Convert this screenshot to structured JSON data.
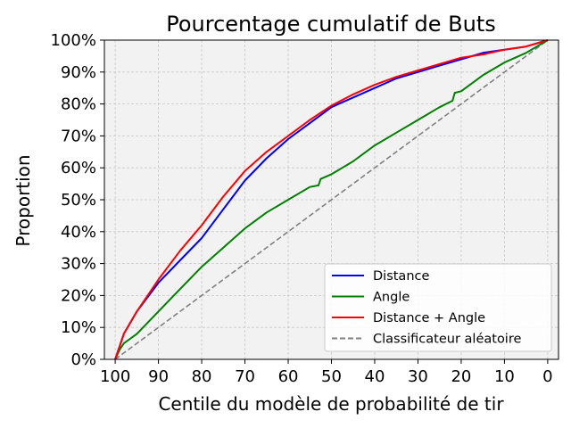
{
  "chart_data": {
    "type": "line",
    "title": "Pourcentage cumulatif de Buts",
    "xlabel": "Centile du modèle de probabilité de tir",
    "ylabel": "Proportion",
    "xlim": [
      102.5,
      -2.5
    ],
    "ylim": [
      0,
      100
    ],
    "x_inverted": true,
    "x_ticks": [
      100,
      90,
      80,
      70,
      60,
      50,
      40,
      30,
      20,
      10,
      0
    ],
    "y_ticks": [
      0,
      10,
      20,
      30,
      40,
      50,
      60,
      70,
      80,
      90,
      100
    ],
    "y_tick_format": "percent",
    "grid": true,
    "legend_position": "bottom-right",
    "background": "#f2f2f2",
    "series": [
      {
        "name": "Distance",
        "color": "#0000ff",
        "style": "solid",
        "x": [
          100,
          99,
          98,
          95,
          90,
          85,
          80,
          75,
          70,
          65,
          60,
          55,
          50,
          45,
          40,
          35,
          30,
          25,
          20,
          15,
          10,
          5,
          0
        ],
        "y": [
          0,
          4,
          8,
          15,
          24,
          31,
          38,
          47,
          56,
          63,
          69,
          74,
          79,
          82,
          85,
          88,
          90,
          92,
          94,
          96,
          97,
          98,
          100
        ]
      },
      {
        "name": "Angle",
        "color": "#008000",
        "style": "solid",
        "x": [
          100,
          99,
          98,
          95,
          90,
          85,
          80,
          75,
          70,
          65,
          60,
          55,
          53,
          52.5,
          50,
          45,
          40,
          35,
          30,
          25,
          22,
          21.5,
          20,
          15,
          10,
          5,
          0
        ],
        "y": [
          0,
          3,
          5,
          8,
          15,
          22,
          29,
          35,
          41,
          46,
          50,
          54,
          54.5,
          56.5,
          58,
          62,
          67,
          71,
          75,
          79,
          81,
          83.5,
          84,
          89,
          93,
          96,
          100
        ]
      },
      {
        "name": "Distance + Angle",
        "color": "#ff0000",
        "style": "solid",
        "x": [
          100,
          99,
          98,
          95,
          90,
          85,
          80,
          75,
          70,
          65,
          60,
          55,
          50,
          45,
          40,
          35,
          30,
          25,
          20,
          15,
          10,
          5,
          0
        ],
        "y": [
          0,
          4,
          8,
          15,
          25,
          34,
          42,
          51,
          59,
          65,
          70,
          75,
          79.5,
          83,
          86,
          88.5,
          90.5,
          92.5,
          94.5,
          95.5,
          97,
          98,
          100
        ]
      },
      {
        "name": "Classificateur aléatoire",
        "color": "#808080",
        "style": "dashed",
        "x": [
          100,
          0
        ],
        "y": [
          0,
          100
        ]
      }
    ]
  }
}
